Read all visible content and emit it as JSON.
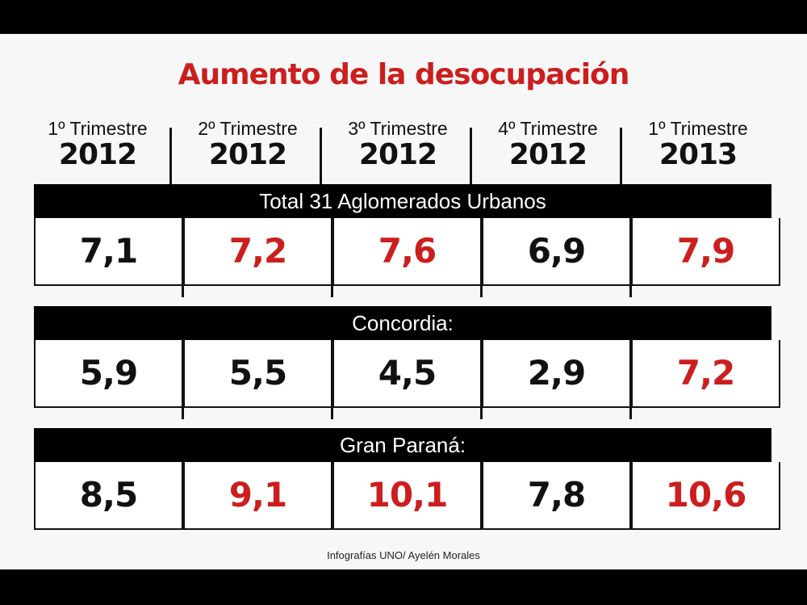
{
  "title": "Aumento de la desocupación",
  "credit": "Infografías UNO/ Ayelén Morales",
  "colors": {
    "increase": "#cc1e1e",
    "other": "#111111"
  },
  "chart_data": {
    "type": "table",
    "title": "Aumento de la desocupación",
    "columns": [
      {
        "quarter": "1º Trimestre",
        "year": "2012"
      },
      {
        "quarter": "2º Trimestre",
        "year": "2012"
      },
      {
        "quarter": "3º Trimestre",
        "year": "2012"
      },
      {
        "quarter": "4º Trimestre",
        "year": "2012"
      },
      {
        "quarter": "1º Trimestre",
        "year": "2013"
      }
    ],
    "groups": [
      {
        "label": "Total 31 Aglomerados Urbanos",
        "values": [
          "7,1",
          "7,2",
          "7,6",
          "6,9",
          "7,9"
        ],
        "highlight": [
          false,
          true,
          true,
          false,
          true
        ]
      },
      {
        "label": "Concordia:",
        "values": [
          "5,9",
          "5,5",
          "4,5",
          "2,9",
          "7,2"
        ],
        "highlight": [
          false,
          false,
          false,
          false,
          true
        ]
      },
      {
        "label": "Gran Paraná:",
        "values": [
          "8,5",
          "9,1",
          "10,1",
          "7,8",
          "10,6"
        ],
        "highlight": [
          false,
          true,
          true,
          false,
          true
        ]
      }
    ]
  }
}
